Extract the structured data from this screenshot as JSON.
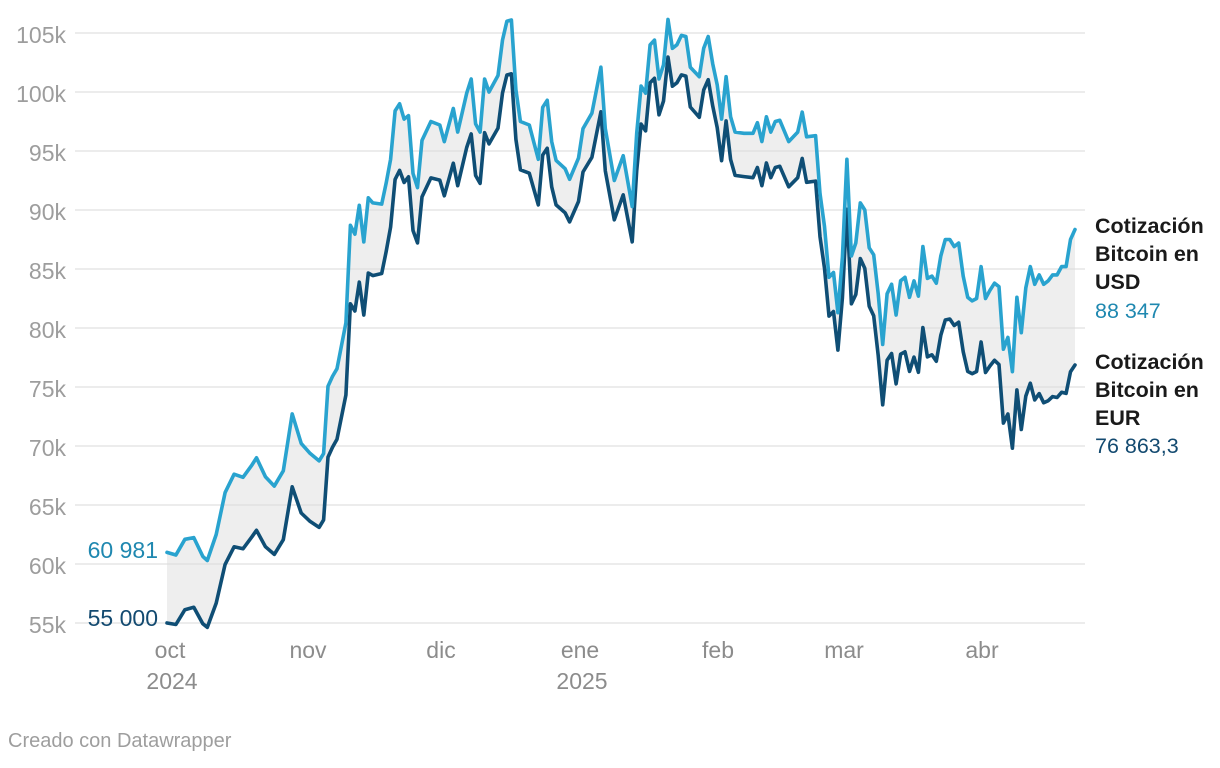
{
  "footer": {
    "credit": "Creado con Datawrapper"
  },
  "chart_data": {
    "type": "line",
    "title": "",
    "xlabel": "",
    "ylabel": "",
    "x_unit": "days since 2024-10-01",
    "x_tick_labels": [
      "oct",
      "nov",
      "dic",
      "ene",
      "feb",
      "mar",
      "abr"
    ],
    "x_tick_days": [
      0,
      31,
      61,
      92,
      123,
      151,
      182
    ],
    "year_labels": [
      "2024",
      "2025"
    ],
    "y_tick_labels_topdown": [
      "105k",
      "100k",
      "95k",
      "90k",
      "85k",
      "80k",
      "75k",
      "70k",
      "65k",
      "60k",
      "55k"
    ],
    "ylim": [
      55000,
      105000
    ],
    "grid_step": 5000,
    "grid_on": true,
    "grid_color": "#d9d9d9",
    "band_fill": "#eeeeee",
    "legend_position": "right-of-line-ends",
    "days": [
      0,
      2,
      4,
      6,
      8,
      9,
      11,
      13,
      15,
      17,
      19,
      20,
      22,
      24,
      26,
      28,
      30,
      32,
      34,
      35,
      36,
      37,
      38,
      40,
      41,
      42,
      43,
      44,
      45,
      46,
      48,
      49,
      50,
      51,
      52,
      53,
      54,
      55,
      56,
      57,
      59,
      61,
      62,
      64,
      65,
      67,
      68,
      69,
      70,
      71,
      72,
      74,
      75,
      76,
      77,
      78,
      79,
      81,
      83,
      84,
      85,
      86,
      87,
      89,
      90,
      92,
      93,
      95,
      97,
      98,
      100,
      102,
      104,
      105,
      106,
      107,
      108,
      109,
      110,
      111,
      112,
      113,
      114,
      115,
      116,
      117,
      119,
      120,
      121,
      122,
      123,
      124,
      125,
      126,
      127,
      129,
      131,
      132,
      133,
      134,
      135,
      136,
      137,
      139,
      141,
      142,
      143,
      145,
      146,
      147,
      148,
      149,
      150,
      151,
      152,
      153,
      154,
      155,
      156,
      157,
      158,
      159,
      160,
      161,
      162,
      163,
      164,
      165,
      166,
      167,
      168,
      169,
      170,
      171,
      172,
      173,
      174,
      175,
      176,
      177,
      178,
      179,
      180,
      181,
      182,
      183,
      184,
      185,
      186,
      187,
      188,
      189,
      190,
      191,
      192,
      193,
      194,
      195,
      196,
      197,
      198,
      199,
      200,
      201,
      202,
      203
    ],
    "series": [
      {
        "name": "Cotización Bitcoin en USD",
        "color": "#29a3cf",
        "label_color": "#1f88b0",
        "start_label": "60 981",
        "end_label": "88 347",
        "values": [
          60981,
          60760,
          62090,
          62240,
          60640,
          60300,
          62500,
          66050,
          67610,
          67350,
          68400,
          69000,
          67400,
          66600,
          67900,
          72720,
          70220,
          69370,
          68740,
          69360,
          75060,
          75900,
          76550,
          80430,
          88700,
          87950,
          90400,
          87300,
          91030,
          90600,
          90500,
          92300,
          94300,
          98400,
          99000,
          97700,
          98000,
          93100,
          91900,
          95900,
          97500,
          97200,
          95800,
          98600,
          96600,
          99900,
          101100,
          97300,
          96600,
          101100,
          100000,
          101400,
          104400,
          106000,
          106100,
          100200,
          97500,
          97200,
          94300,
          98700,
          99300,
          95800,
          94200,
          93500,
          92600,
          94400,
          96900,
          98200,
          102100,
          96900,
          92500,
          94600,
          90300,
          96500,
          100500,
          99900,
          104000,
          104400,
          101100,
          102300,
          106150,
          103700,
          104000,
          104800,
          104700,
          102100,
          101300,
          103700,
          104700,
          102400,
          100600,
          97700,
          101300,
          97900,
          96600,
          96500,
          96500,
          97400,
          95800,
          97900,
          96600,
          97500,
          97600,
          95800,
          96600,
          98300,
          96200,
          96300,
          91400,
          88600,
          84300,
          84700,
          81300,
          86000,
          94300,
          86100,
          87200,
          90600,
          90000,
          86800,
          86200,
          82900,
          78600,
          82900,
          83700,
          81100,
          84000,
          84300,
          82600,
          84000,
          82700,
          86900,
          84200,
          84400,
          83800,
          86100,
          87500,
          87500,
          86900,
          87200,
          84400,
          82600,
          82300,
          82500,
          85200,
          82500,
          83200,
          83800,
          83500,
          78200,
          79200,
          76300,
          82600,
          79600,
          83400,
          85200,
          83700,
          84500,
          83700,
          84000,
          84500,
          84500,
          85200,
          85200,
          87500,
          88347
        ]
      },
      {
        "name": "Cotización Bitcoin en EUR",
        "color": "#0f4e75",
        "label_color": "#134a70",
        "start_label": "55 000",
        "end_label": "76 863,3",
        "values": [
          55000,
          54870,
          56130,
          56330,
          54940,
          54630,
          56690,
          59970,
          61460,
          61290,
          62310,
          62860,
          61470,
          60810,
          62060,
          66540,
          64320,
          63610,
          63100,
          63740,
          69060,
          69900,
          70580,
          74320,
          82050,
          81440,
          83890,
          81100,
          84660,
          84440,
          84620,
          86490,
          88550,
          92590,
          93360,
          92330,
          92810,
          88260,
          87210,
          91110,
          92720,
          92530,
          91200,
          93970,
          92060,
          95300,
          96450,
          92920,
          92250,
          96550,
          95600,
          96940,
          99910,
          101440,
          101540,
          95990,
          93410,
          93120,
          90430,
          94650,
          95230,
          91970,
          90430,
          89760,
          88990,
          90720,
          93220,
          94470,
          98320,
          93320,
          89170,
          91290,
          87300,
          93320,
          97280,
          96700,
          100780,
          101160,
          98070,
          99230,
          102970,
          100490,
          100780,
          101450,
          101350,
          98730,
          97860,
          100170,
          101040,
          98820,
          96980,
          94180,
          97550,
          94280,
          92930,
          92830,
          92740,
          93600,
          92060,
          93980,
          92740,
          93600,
          93700,
          91970,
          92740,
          94370,
          92350,
          92450,
          87740,
          85060,
          81010,
          81400,
          78130,
          82560,
          90060,
          82050,
          82840,
          85890,
          85050,
          81850,
          81030,
          77680,
          73490,
          77260,
          77840,
          75260,
          77780,
          77980,
          76320,
          77530,
          76250,
          80030,
          77550,
          77730,
          77180,
          79380,
          80680,
          80760,
          80210,
          80490,
          77990,
          76320,
          76130,
          76310,
          78810,
          76230,
          76790,
          77260,
          76900,
          71940,
          72710,
          69810,
          74750,
          71400,
          74230,
          75320,
          73910,
          74440,
          73660,
          73840,
          74190,
          74110,
          74550,
          74460,
          76300,
          76863.3
        ]
      }
    ]
  }
}
